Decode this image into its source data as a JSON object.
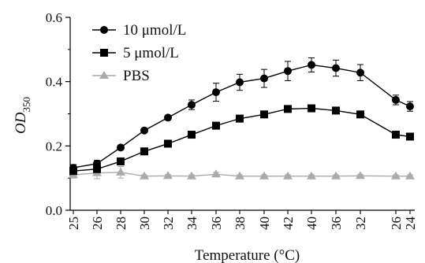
{
  "chart_data": {
    "type": "line",
    "title": "",
    "xlabel": "Temperature (°C)",
    "ylabel": {
      "main": "OD",
      "subscript": "350"
    },
    "ylim": [
      0,
      0.6
    ],
    "yticks": [
      "0.0",
      "0.2",
      "0.4",
      "0.6"
    ],
    "categories": [
      "25",
      "26",
      "28",
      "30",
      "32",
      "34",
      "36",
      "38",
      "40",
      "42",
      "40",
      "36",
      "32",
      "26",
      "24"
    ],
    "legend_position": "top-left",
    "grid": false,
    "series": [
      {
        "name": "10 μmol/L",
        "marker": "circle",
        "color": "#000000",
        "values": [
          0.132,
          0.145,
          0.195,
          0.248,
          0.288,
          0.328,
          0.367,
          0.398,
          0.41,
          0.433,
          0.452,
          0.442,
          0.428,
          0.343,
          0.323
        ],
        "errors": [
          0.01,
          0.01,
          0.006,
          0.006,
          0.006,
          0.015,
          0.028,
          0.025,
          0.028,
          0.03,
          0.022,
          0.025,
          0.025,
          0.015,
          0.015
        ]
      },
      {
        "name": "5 μmol/L",
        "marker": "square",
        "color": "#000000",
        "values": [
          0.122,
          0.128,
          0.152,
          0.183,
          0.207,
          0.235,
          0.263,
          0.285,
          0.298,
          0.315,
          0.317,
          0.31,
          0.298,
          0.235,
          0.229
        ],
        "errors": [
          0.006,
          0.006,
          0.006,
          0.006,
          0.006,
          0.006,
          0.006,
          0.006,
          0.008,
          0.008,
          0.008,
          0.008,
          0.008,
          0.006,
          0.006
        ]
      },
      {
        "name": "PBS",
        "marker": "triangle",
        "color": "#aaaaaa",
        "values": [
          0.11,
          0.116,
          0.118,
          0.106,
          0.107,
          0.106,
          0.112,
          0.106,
          0.106,
          0.106,
          0.106,
          0.106,
          0.107,
          0.106,
          0.106
        ],
        "errors": [
          0.01,
          0.018,
          0.018,
          0.004,
          0.004,
          0.004,
          0.006,
          0.004,
          0.004,
          0.004,
          0.004,
          0.004,
          0.004,
          0.004,
          0.004
        ]
      }
    ]
  }
}
